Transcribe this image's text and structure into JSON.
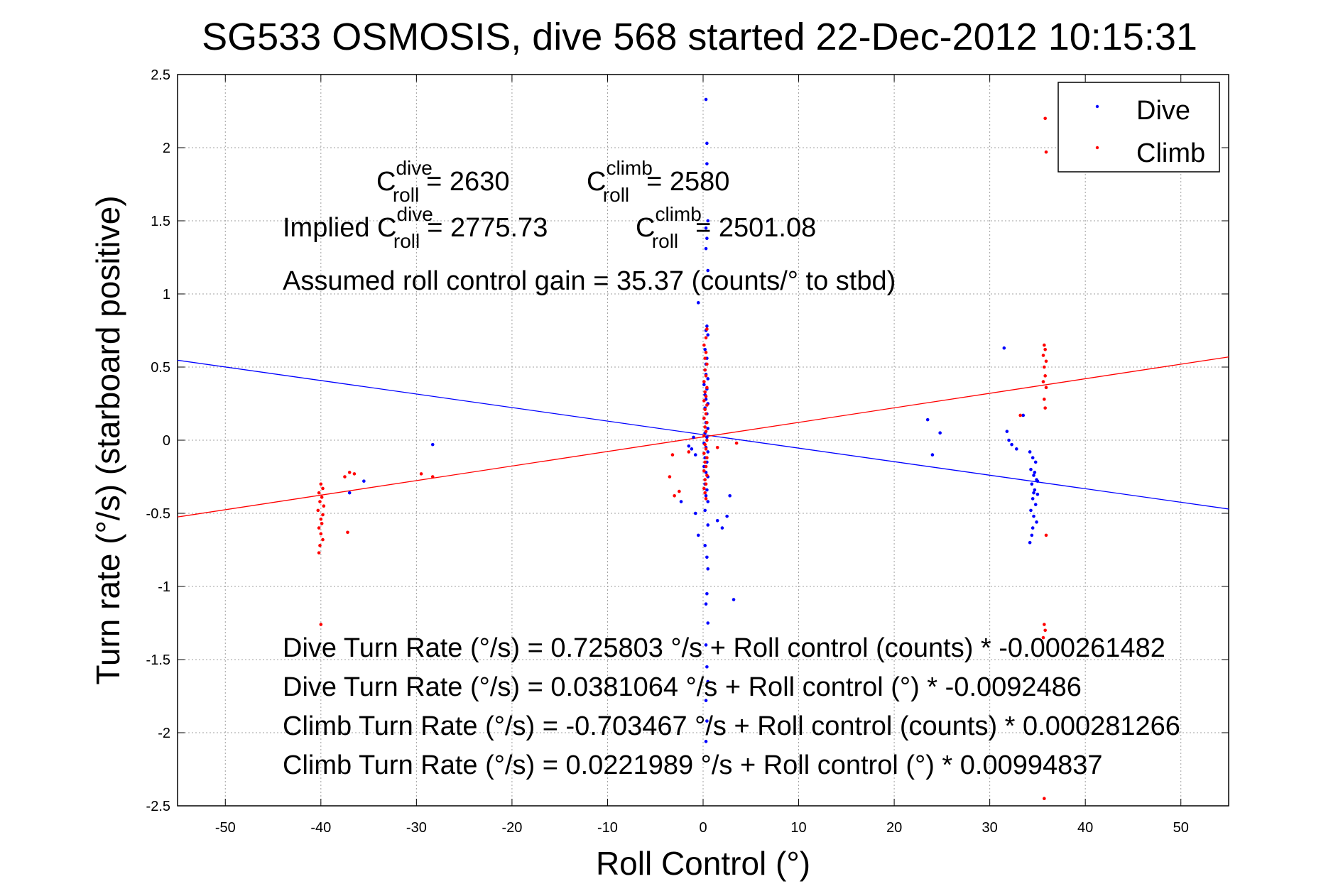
{
  "chart_data": {
    "type": "scatter",
    "title": "SG533 OSMOSIS, dive 568 started 22-Dec-2012 10:15:31",
    "xlabel": "Roll Control (°)",
    "ylabel": "Turn rate (°/s)  (starboard positive)",
    "xlim": [
      -55,
      55
    ],
    "ylim": [
      -2.5,
      2.5
    ],
    "xticks": [
      -50,
      -40,
      -30,
      -20,
      -10,
      0,
      10,
      20,
      30,
      40,
      50
    ],
    "yticks": [
      -2.5,
      -2,
      -1.5,
      -1,
      -0.5,
      0,
      0.5,
      1,
      1.5,
      2,
      2.5
    ],
    "grid": true,
    "legend_position": "top-right",
    "legend": [
      "Dive",
      "Climb"
    ],
    "colors": {
      "dive": "#0000ff",
      "climb": "#ff0000"
    },
    "series": [
      {
        "name": "Dive",
        "color": "#0000ff",
        "points": [
          [
            0.3,
            2.33
          ],
          [
            0.4,
            2.03
          ],
          [
            0.4,
            1.89
          ],
          [
            0.5,
            1.5
          ],
          [
            0.3,
            1.45
          ],
          [
            0.4,
            1.38
          ],
          [
            0.3,
            1.31
          ],
          [
            0.5,
            1.16
          ],
          [
            -0.5,
            0.94
          ],
          [
            0.4,
            0.78
          ],
          [
            0.3,
            0.75
          ],
          [
            0.5,
            0.72
          ],
          [
            0.2,
            0.62
          ],
          [
            0.4,
            0.56
          ],
          [
            0.3,
            0.52
          ],
          [
            0.2,
            0.48
          ],
          [
            0.3,
            0.45
          ],
          [
            0.5,
            0.42
          ],
          [
            0.1,
            0.38
          ],
          [
            0.4,
            0.35
          ],
          [
            0.2,
            0.31
          ],
          [
            0.3,
            0.28
          ],
          [
            0.5,
            0.25
          ],
          [
            0.2,
            0.22
          ],
          [
            0.4,
            0.18
          ],
          [
            0.1,
            0.15
          ],
          [
            0.3,
            0.12
          ],
          [
            0.5,
            0.08
          ],
          [
            0.2,
            0.05
          ],
          [
            0.4,
            0.02
          ],
          [
            0.1,
            -0.02
          ],
          [
            0.3,
            -0.05
          ],
          [
            0.5,
            -0.08
          ],
          [
            0.2,
            -0.12
          ],
          [
            0.4,
            -0.15
          ],
          [
            0.1,
            -0.18
          ],
          [
            0.3,
            -0.22
          ],
          [
            0.5,
            -0.25
          ],
          [
            0.2,
            -0.3
          ],
          [
            0.4,
            -0.34
          ],
          [
            0.3,
            -0.38
          ],
          [
            0.5,
            -0.42
          ],
          [
            0.2,
            -0.48
          ],
          [
            -1.5,
            -0.04
          ],
          [
            -1.2,
            -0.06
          ],
          [
            -1.0,
            0.02
          ],
          [
            -0.8,
            -0.1
          ],
          [
            -2.3,
            -0.42
          ],
          [
            -0.8,
            -0.5
          ],
          [
            -0.5,
            -0.65
          ],
          [
            1.5,
            -0.55
          ],
          [
            2.0,
            -0.6
          ],
          [
            2.5,
            -0.52
          ],
          [
            2.8,
            -0.38
          ],
          [
            3.2,
            -1.09
          ],
          [
            0.5,
            -0.88
          ],
          [
            0.4,
            -1.05
          ],
          [
            0.3,
            -1.12
          ],
          [
            0.5,
            -1.25
          ],
          [
            0.3,
            -1.4
          ],
          [
            0.4,
            -1.55
          ],
          [
            0.5,
            -1.65
          ],
          [
            0.3,
            -1.78
          ],
          [
            0.4,
            -1.92
          ],
          [
            0.3,
            -2.06
          ],
          [
            0.5,
            -0.58
          ],
          [
            0.2,
            -0.72
          ],
          [
            0.4,
            -0.8
          ],
          [
            -28.3,
            -0.03
          ],
          [
            -37.0,
            -0.36
          ],
          [
            -35.5,
            -0.28
          ],
          [
            23.5,
            0.14
          ],
          [
            24.0,
            -0.1
          ],
          [
            24.8,
            0.05
          ],
          [
            31.5,
            0.63
          ],
          [
            31.8,
            0.06
          ],
          [
            32.0,
            0.0
          ],
          [
            32.3,
            -0.03
          ],
          [
            32.8,
            -0.06
          ],
          [
            33.5,
            0.17
          ],
          [
            34.2,
            -0.08
          ],
          [
            34.5,
            -0.12
          ],
          [
            34.8,
            -0.15
          ],
          [
            34.3,
            -0.2
          ],
          [
            34.6,
            -0.24
          ],
          [
            34.9,
            -0.27
          ],
          [
            34.4,
            -0.3
          ],
          [
            34.7,
            -0.34
          ],
          [
            35.0,
            -0.37
          ],
          [
            34.5,
            -0.4
          ],
          [
            34.8,
            -0.44
          ],
          [
            34.3,
            -0.48
          ],
          [
            34.6,
            -0.52
          ],
          [
            34.9,
            -0.56
          ],
          [
            34.5,
            -0.6
          ],
          [
            34.4,
            -0.65
          ],
          [
            34.2,
            -0.7
          ],
          [
            35.0,
            -0.28
          ],
          [
            34.7,
            -0.22
          ],
          [
            34.6,
            -0.36
          ]
        ]
      },
      {
        "name": "Climb",
        "color": "#ff0000",
        "points": [
          [
            0.2,
            0.48
          ],
          [
            0.3,
            0.44
          ],
          [
            0.1,
            0.4
          ],
          [
            0.4,
            0.36
          ],
          [
            0.2,
            0.33
          ],
          [
            0.3,
            0.3
          ],
          [
            0.1,
            0.27
          ],
          [
            0.4,
            0.24
          ],
          [
            0.2,
            0.21
          ],
          [
            0.3,
            0.18
          ],
          [
            0.1,
            0.15
          ],
          [
            0.4,
            0.12
          ],
          [
            0.2,
            0.09
          ],
          [
            0.3,
            0.06
          ],
          [
            0.1,
            0.03
          ],
          [
            0.4,
            0.0
          ],
          [
            0.2,
            -0.03
          ],
          [
            0.3,
            -0.06
          ],
          [
            0.1,
            -0.09
          ],
          [
            0.4,
            -0.12
          ],
          [
            0.2,
            -0.15
          ],
          [
            0.3,
            -0.18
          ],
          [
            0.1,
            -0.21
          ],
          [
            0.4,
            -0.24
          ],
          [
            0.2,
            -0.27
          ],
          [
            0.3,
            -0.3
          ],
          [
            0.1,
            -0.33
          ],
          [
            0.2,
            -0.36
          ],
          [
            0.3,
            -0.4
          ],
          [
            0.4,
            0.52
          ],
          [
            0.2,
            0.56
          ],
          [
            0.3,
            0.6
          ],
          [
            0.1,
            0.65
          ],
          [
            0.3,
            0.7
          ],
          [
            0.4,
            0.76
          ],
          [
            -3.2,
            -0.1
          ],
          [
            -3.5,
            -0.25
          ],
          [
            -2.5,
            -0.35
          ],
          [
            -3.0,
            -0.38
          ],
          [
            -1.5,
            -0.08
          ],
          [
            1.5,
            -0.05
          ],
          [
            3.5,
            -0.02
          ],
          [
            -40.0,
            -0.3
          ],
          [
            -39.8,
            -0.33
          ],
          [
            -40.2,
            -0.36
          ],
          [
            -39.9,
            -0.39
          ],
          [
            -40.1,
            -0.42
          ],
          [
            -39.7,
            -0.45
          ],
          [
            -40.3,
            -0.48
          ],
          [
            -39.8,
            -0.51
          ],
          [
            -40.0,
            -0.54
          ],
          [
            -39.9,
            -0.57
          ],
          [
            -40.2,
            -0.6
          ],
          [
            -40.0,
            -0.64
          ],
          [
            -39.8,
            -0.68
          ],
          [
            -40.1,
            -0.72
          ],
          [
            -40.2,
            -0.77
          ],
          [
            -40.0,
            -1.26
          ],
          [
            -37.5,
            -0.25
          ],
          [
            -37.0,
            -0.22
          ],
          [
            -36.5,
            -0.23
          ],
          [
            -37.2,
            -0.63
          ],
          [
            -29.5,
            -0.23
          ],
          [
            -28.3,
            -0.25
          ],
          [
            33.2,
            0.17
          ],
          [
            35.7,
            0.65
          ],
          [
            35.8,
            0.62
          ],
          [
            35.6,
            0.58
          ],
          [
            35.9,
            0.54
          ],
          [
            35.7,
            0.5
          ],
          [
            35.8,
            0.44
          ],
          [
            35.6,
            0.4
          ],
          [
            35.9,
            0.36
          ],
          [
            35.7,
            0.28
          ],
          [
            35.8,
            0.22
          ],
          [
            35.9,
            -0.65
          ],
          [
            35.7,
            -1.26
          ],
          [
            35.8,
            -1.3
          ],
          [
            35.6,
            -1.35
          ],
          [
            35.8,
            2.2
          ],
          [
            35.9,
            1.97
          ],
          [
            35.7,
            -2.45
          ]
        ]
      }
    ],
    "fit_lines": [
      {
        "name": "Dive fit",
        "color": "#0000ff",
        "intercept": 0.0381064,
        "slope": -0.0092486
      },
      {
        "name": "Climb fit",
        "color": "#ff0000",
        "intercept": 0.0221989,
        "slope": 0.00994837
      }
    ],
    "annotations": {
      "c_roll_dive_label": "C",
      "c_roll_dive_sup": "dive",
      "c_roll_dive_sub": "roll",
      "c_roll_dive_value": "= 2630",
      "c_roll_climb_label": "C",
      "c_roll_climb_sup": "climb",
      "c_roll_climb_sub": "roll",
      "c_roll_climb_value": "= 2580",
      "implied_prefix": "Implied C",
      "implied_dive_sup": "dive",
      "implied_dive_sub": "roll",
      "implied_dive_value": "= 2775.73",
      "implied_climb_label": "C",
      "implied_climb_sup": "climb",
      "implied_climb_sub": "roll",
      "implied_climb_value": "= 2501.08",
      "gain": "Assumed roll control gain = 35.37 (counts/° to stbd)",
      "eq1": "Dive Turn Rate (°/s) = 0.725803 °/s + Roll control (counts) * -0.000261482",
      "eq2": "Dive Turn Rate (°/s) = 0.0381064 °/s + Roll control (°) * -0.0092486",
      "eq3": "Climb Turn Rate (°/s) = -0.703467 °/s + Roll control (counts) * 0.000281266",
      "eq4": "Climb Turn Rate (°/s) = 0.0221989 °/s + Roll control (°) * 0.00994837"
    }
  }
}
